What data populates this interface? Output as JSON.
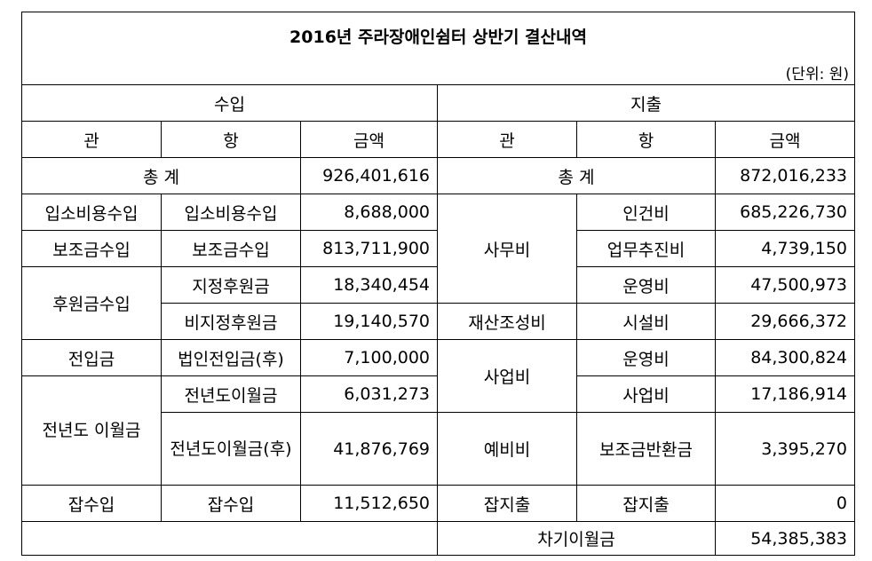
{
  "title": "2016년 주라장애인쉼터 상반기 결산내역",
  "unit": "(단위: 원)",
  "headers": {
    "income": "수입",
    "expense": "지출",
    "gwan": "관",
    "hang": "항",
    "amount": "금액"
  },
  "totals": {
    "label": "총 계",
    "income": "926,401,616",
    "expense": "872,016,233"
  },
  "income": {
    "r1": {
      "gwan": "입소비용수입",
      "hang": "입소비용수입",
      "amount": "8,688,000"
    },
    "r2": {
      "gwan": "보조금수입",
      "hang": "보조금수입",
      "amount": "813,711,900"
    },
    "r3": {
      "gwan": "후원금수입",
      "hang": "지정후원금",
      "amount": "18,340,454"
    },
    "r4": {
      "hang": "비지정후원금",
      "amount": "19,140,570"
    },
    "r5": {
      "gwan": "전입금",
      "hang": "법인전입금(후)",
      "amount": "7,100,000"
    },
    "r6": {
      "gwan": "전년도 이월금",
      "hang": "전년도이월금",
      "amount": "6,031,273"
    },
    "r7": {
      "hang": "전년도이월금(후)",
      "amount": "41,876,769"
    },
    "r8": {
      "gwan": "잡수입",
      "hang": "잡수입",
      "amount": "11,512,650"
    }
  },
  "expense": {
    "r1": {
      "gwan": "사무비",
      "hang": "인건비",
      "amount": "685,226,730"
    },
    "r2": {
      "hang": "업무추진비",
      "amount": "4,739,150"
    },
    "r3": {
      "hang": "운영비",
      "amount": "47,500,973"
    },
    "r4": {
      "gwan": "재산조성비",
      "hang": "시설비",
      "amount": "29,666,372"
    },
    "r5": {
      "gwan": "사업비",
      "hang": "운영비",
      "amount": "84,300,824"
    },
    "r6": {
      "hang": "사업비",
      "amount": "17,186,914"
    },
    "r7": {
      "gwan": "예비비",
      "hang": "보조금반환금",
      "amount": "3,395,270"
    },
    "r8": {
      "gwan": "잡지출",
      "hang": "잡지출",
      "amount": "0"
    },
    "carryover_label": "차기이월금",
    "carryover_amount": "54,385,383"
  }
}
